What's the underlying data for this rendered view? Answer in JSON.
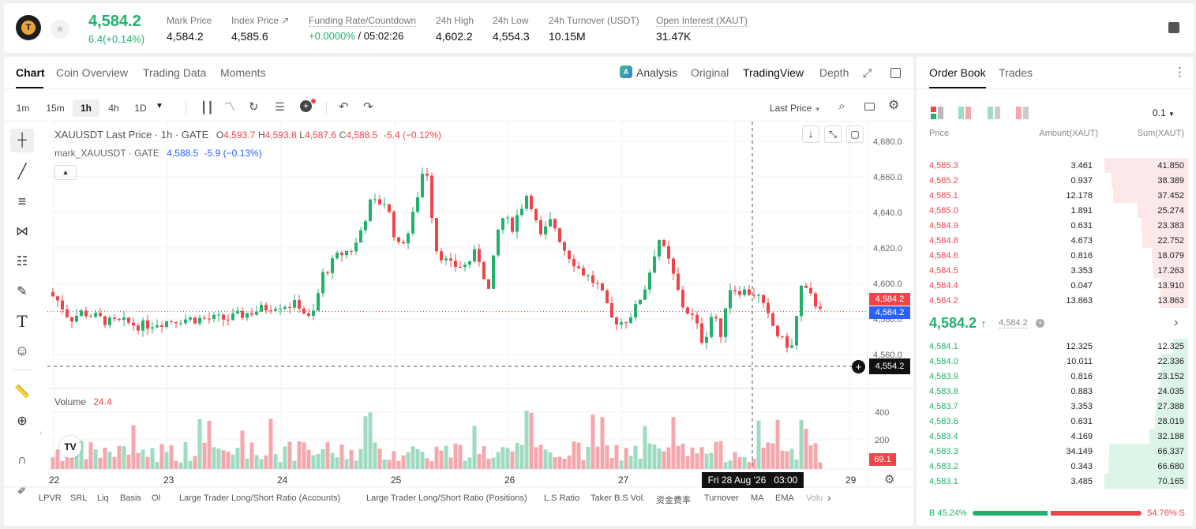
{
  "ticker": {
    "price": "4,584.2",
    "change": "6.4(+0.14%)",
    "stats": [
      {
        "label": "Mark Price",
        "value": "4,584.2"
      },
      {
        "label": "Index Price ↗",
        "value": "4,585.6"
      },
      {
        "label": "Funding Rate/Countdown",
        "value_green": "+0.0000%",
        "value": " / 05:02:26"
      },
      {
        "label": "24h High",
        "value": "4,602.2"
      },
      {
        "label": "24h Low",
        "value": "4,554.3"
      },
      {
        "label": "24h Turnover (USDT)",
        "value": "10.15M"
      },
      {
        "label": "Open Interest (XAUT)",
        "value": "31.47K"
      }
    ]
  },
  "chart_tabs": [
    "Chart",
    "Coin Overview",
    "Trading Data",
    "Moments"
  ],
  "view_tabs": {
    "analysis": "Analysis",
    "original": "Original",
    "tradingview": "TradingView",
    "depth": "Depth"
  },
  "timeframes": [
    "1m",
    "15m",
    "1h",
    "4h",
    "1D"
  ],
  "last_price_select": "Last Price",
  "legend": {
    "symbol": "XAUUSDT Last Price · 1h · GATE",
    "o_label": "O",
    "o": "4,593.7",
    "h_label": "H",
    "h": "4,593.8",
    "l_label": "L",
    "l": "4,587.6",
    "c_label": "C",
    "c": "4,588.5",
    "chg": "-5.4 (−0.12%)",
    "mark_name": "mark_XAUUSDT · GATE",
    "mark_value": "4,588.5",
    "mark_chg": "-5.9 (−0.13%)"
  },
  "volume": {
    "label": "Volume",
    "value": "24.4",
    "tag": "69.1"
  },
  "y_ticks": [
    "4,680.0",
    "4,660.0",
    "4,640.0",
    "4,620.0",
    "4,600.0",
    "4,580.0",
    "4,560.0"
  ],
  "vol_ticks": [
    "400",
    "200"
  ],
  "price_tags": {
    "last": "4,584.2",
    "mark": "4,584.2",
    "cross": "4,554.2"
  },
  "x_ticks": [
    "22",
    "23",
    "24",
    "25",
    "26",
    "27",
    "29"
  ],
  "crosshair_time": "Fri 28 Aug '26   03:00",
  "indicators": [
    "LPVR",
    "SRL",
    "Liq",
    "Basis",
    "OI",
    "Large Trader Long/Short Ratio (Accounts)",
    "Large Trader Long/Short Ratio (Positions)",
    "L.S Ratio",
    "Taker B.S Vol.",
    "资金费率",
    "Turnover",
    "MA",
    "EMA",
    "Volu"
  ],
  "orderbook": {
    "tabs": [
      "Order Book",
      "Trades"
    ],
    "precision": "0.1",
    "headers": {
      "price": "Price",
      "amount": "Amount(XAUT)",
      "sum": "Sum(XAUT)"
    },
    "asks": [
      {
        "price": "4,585.3",
        "amount": "3.461",
        "sum": "41.850",
        "depth": 1.0
      },
      {
        "price": "4,585.2",
        "amount": "0.937",
        "sum": "38.389",
        "depth": 0.917
      },
      {
        "price": "4,585.1",
        "amount": "12.178",
        "sum": "37.452",
        "depth": 0.895
      },
      {
        "price": "4,585.0",
        "amount": "1.891",
        "sum": "25.274",
        "depth": 0.604
      },
      {
        "price": "4,584.9",
        "amount": "0.631",
        "sum": "23.383",
        "depth": 0.559
      },
      {
        "price": "4,584.8",
        "amount": "4.673",
        "sum": "22.752",
        "depth": 0.544
      },
      {
        "price": "4,584.6",
        "amount": "0.816",
        "sum": "18.079",
        "depth": 0.432
      },
      {
        "price": "4,584.5",
        "amount": "3.353",
        "sum": "17.263",
        "depth": 0.412
      },
      {
        "price": "4,584.4",
        "amount": "0.047",
        "sum": "13.910",
        "depth": 0.332
      },
      {
        "price": "4,584.2",
        "amount": "13.863",
        "sum": "13.863",
        "depth": 0.331
      }
    ],
    "mid_price": "4,584.2",
    "mid_arrow": "↑",
    "mark_price": "4,584.2",
    "bids": [
      {
        "price": "4,584.1",
        "amount": "12.325",
        "sum": "12.325",
        "depth": 0.176
      },
      {
        "price": "4,584.0",
        "amount": "10.011",
        "sum": "22.336",
        "depth": 0.318
      },
      {
        "price": "4,583.9",
        "amount": "0.816",
        "sum": "23.152",
        "depth": 0.33
      },
      {
        "price": "4,583.8",
        "amount": "0.883",
        "sum": "24.035",
        "depth": 0.343
      },
      {
        "price": "4,583.7",
        "amount": "3.353",
        "sum": "27.388",
        "depth": 0.39
      },
      {
        "price": "4,583.6",
        "amount": "0.631",
        "sum": "28.019",
        "depth": 0.4
      },
      {
        "price": "4,583.4",
        "amount": "4.169",
        "sum": "32.188",
        "depth": 0.459
      },
      {
        "price": "4,583.3",
        "amount": "34.149",
        "sum": "66.337",
        "depth": 0.946
      },
      {
        "price": "4,583.2",
        "amount": "0.343",
        "sum": "66.680",
        "depth": 0.951
      },
      {
        "price": "4,583.1",
        "amount": "3.485",
        "sum": "70.165",
        "depth": 1.0
      }
    ],
    "buy_ratio": "B 45.24%",
    "sell_ratio": "54.76% S",
    "buy_fraction": 0.4524
  },
  "colors": {
    "up": "#20b26c",
    "down": "#ef454a",
    "up_vol": "#9edbc0",
    "down_vol": "#f4a7ac"
  }
}
